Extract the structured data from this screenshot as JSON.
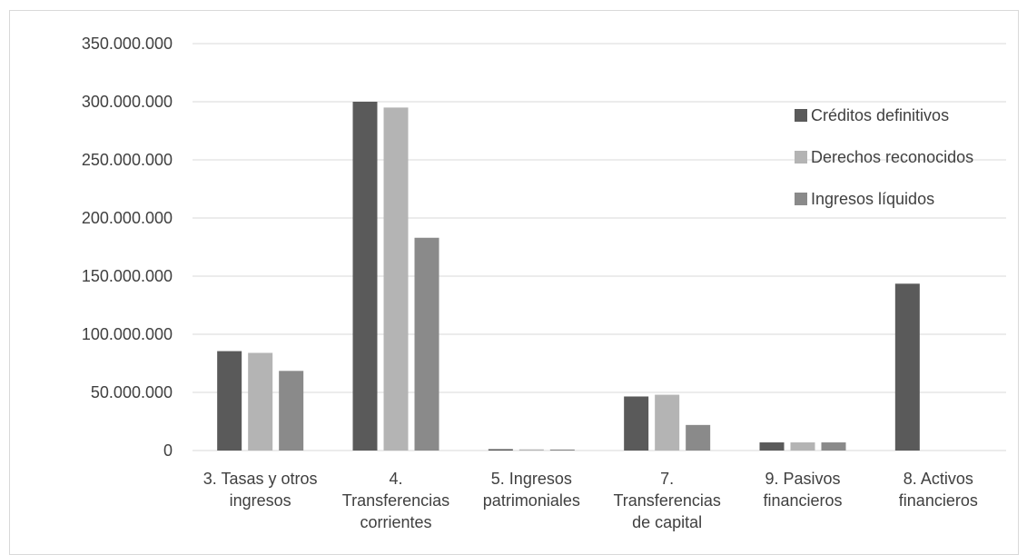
{
  "chart_data": {
    "type": "bar",
    "categories": [
      [
        "3. Tasas y otros",
        "ingresos"
      ],
      [
        "4.",
        "Transferencias",
        "corrientes"
      ],
      [
        "5. Ingresos",
        "patrimoniales"
      ],
      [
        "7.",
        "Transferencias",
        "de capital"
      ],
      [
        "9. Pasivos",
        "financieros"
      ],
      [
        "8. Activos",
        "financieros"
      ]
    ],
    "series": [
      {
        "name": "Créditos definitivos",
        "color": "#5a5a5a",
        "values": [
          85500000,
          300000000,
          1200000,
          46500000,
          7000000,
          143500000
        ]
      },
      {
        "name": "Derechos reconocidos",
        "color": "#b4b4b4",
        "values": [
          84000000,
          295000000,
          1000000,
          48000000,
          7000000,
          0
        ]
      },
      {
        "name": "Ingresos líquidos",
        "color": "#8a8a8a",
        "values": [
          68500000,
          183000000,
          900000,
          22000000,
          7000000,
          0
        ]
      }
    ],
    "ylim": [
      0,
      350000000
    ],
    "yticks": [
      "0",
      "50.000.000",
      "100.000.000",
      "150.000.000",
      "200.000.000",
      "250.000.000",
      "300.000.000",
      "350.000.000"
    ],
    "ytick_values": [
      0,
      50000000,
      100000000,
      150000000,
      200000000,
      250000000,
      300000000,
      350000000
    ],
    "grid": true,
    "legend_position": "right"
  }
}
